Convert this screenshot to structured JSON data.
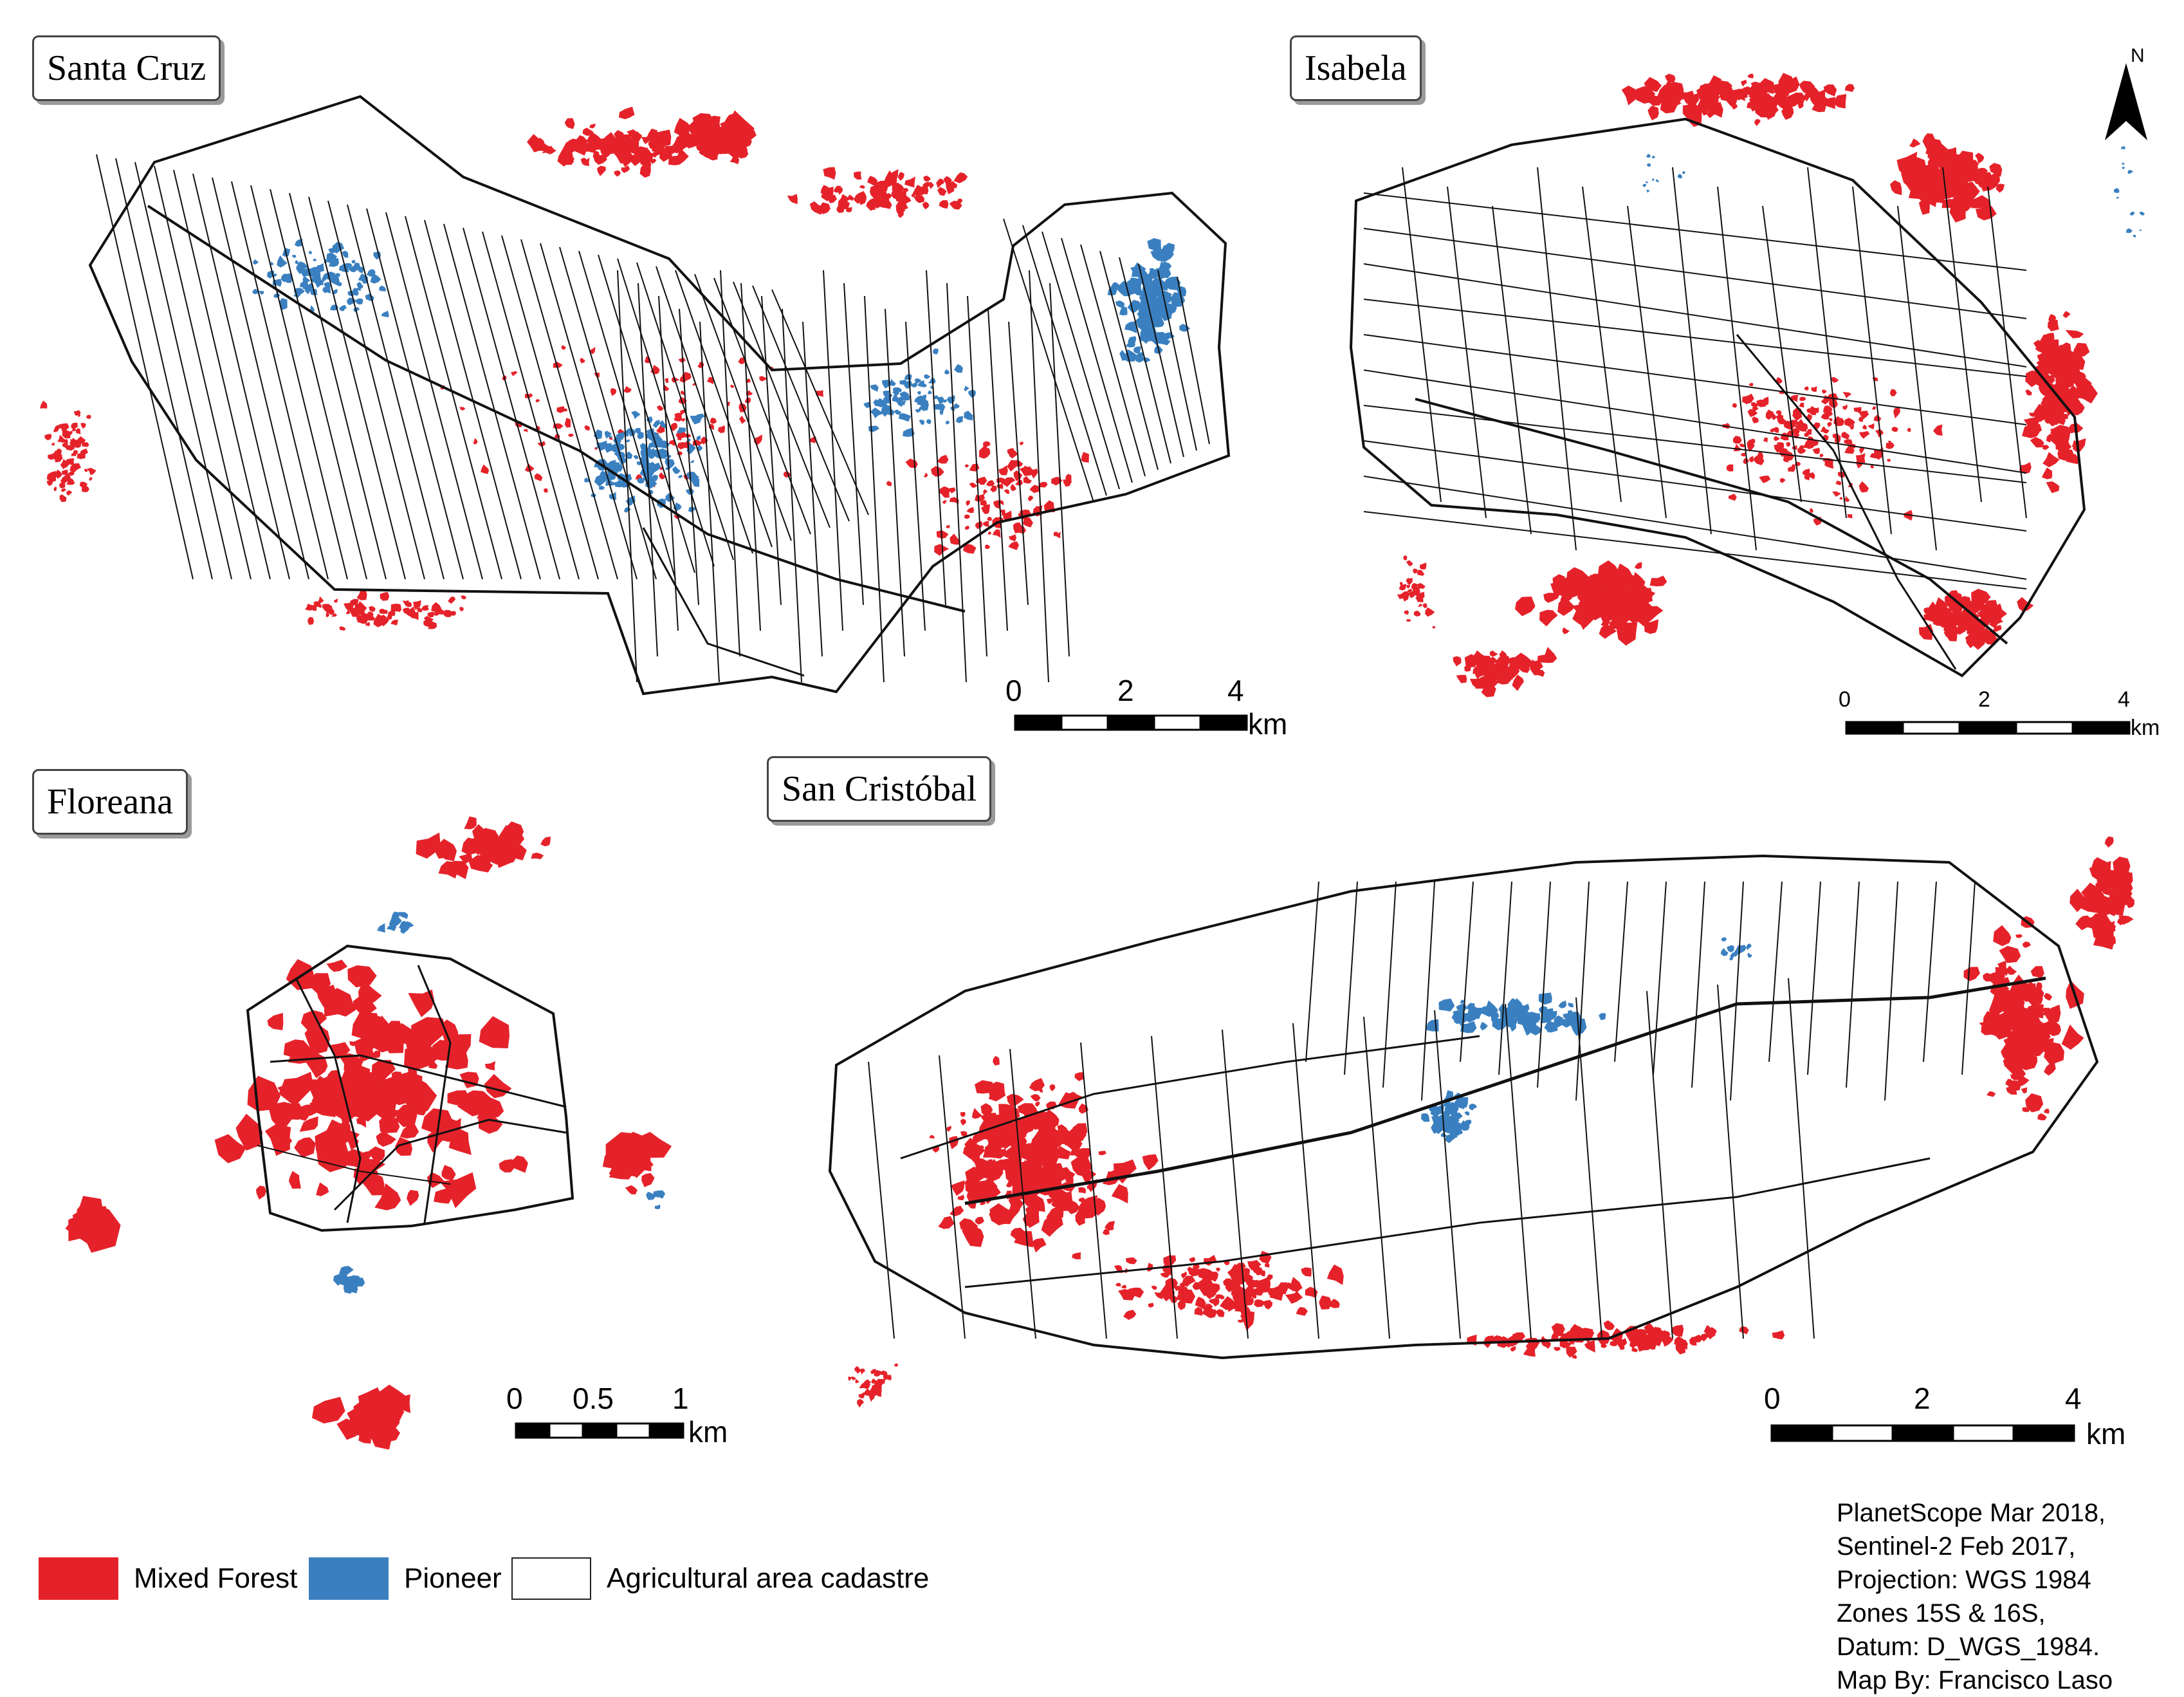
{
  "colors": {
    "mixed_forest": "#e5222a",
    "pioneer": "#3a80c0",
    "cadastre_line": "#111111",
    "background": "#ffffff"
  },
  "panels": {
    "santa_cruz": {
      "title": "Santa Cruz",
      "scale": {
        "ticks": [
          "0",
          "2",
          "4"
        ],
        "unit": "km"
      }
    },
    "isabela": {
      "title": "Isabela",
      "north_label": "N",
      "scale": {
        "ticks": [
          "0",
          "2",
          "4"
        ],
        "unit": "km"
      }
    },
    "floreana": {
      "title": "Floreana",
      "scale": {
        "ticks": [
          "0",
          "0.5",
          "1"
        ],
        "unit": "km"
      }
    },
    "san_cristobal": {
      "title": "San Cristóbal",
      "scale": {
        "ticks": [
          "0",
          "2",
          "4"
        ],
        "unit": "km"
      }
    }
  },
  "legend": [
    {
      "label": "Mixed Forest",
      "color": "#e5222a"
    },
    {
      "label": "Pioneer",
      "color": "#3a80c0"
    },
    {
      "label": "Agricultural area cadastre",
      "color": "#ffffff"
    }
  ],
  "credits": [
    "PlanetScope Mar 2018,",
    "Sentinel-2 Feb 2017,",
    "Projection: WGS 1984",
    "Zones 15S & 16S,",
    "Datum: D_WGS_1984.",
    "Map By: Francisco Laso"
  ]
}
